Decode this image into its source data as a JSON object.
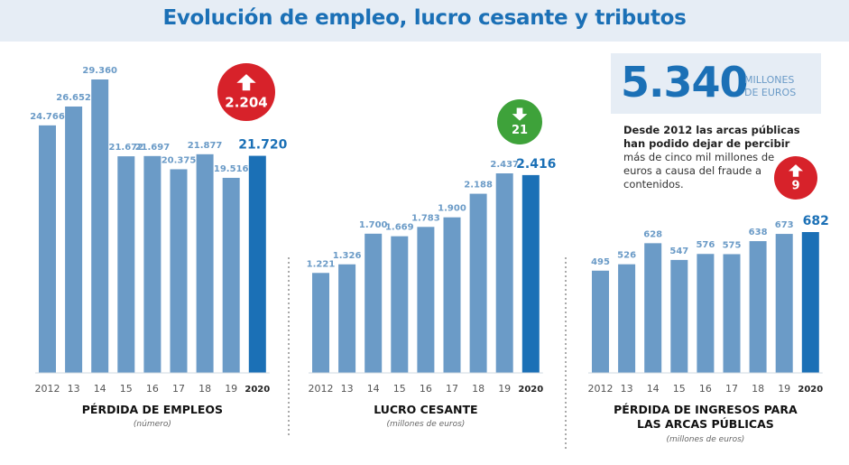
{
  "title": "Evolución de empleo, lucro cesante y tributos",
  "colors": {
    "bar": "#6b9bc7",
    "bar_last": "#1b70b6",
    "up": "#d7222a",
    "down": "#3ea23a",
    "title": "#1b70b6"
  },
  "highlight": {
    "value": "5.340",
    "unit_line1": "MILLONES",
    "unit_line2": "DE EUROS",
    "text_bold": "Desde 2012 las arcas públicas han podido dejar de percibir",
    "text_rest": "más de cinco mil millones de euros a causa del fraude a contenidos."
  },
  "chart_data": [
    {
      "type": "bar",
      "title": "PÉRDIDA DE EMPLEOS",
      "subtitle": "(número)",
      "categories": [
        "2012",
        "13",
        "14",
        "15",
        "16",
        "17",
        "18",
        "19",
        "2020"
      ],
      "values": [
        24766,
        26652,
        29360,
        21672,
        21697,
        20375,
        21877,
        19516,
        21720
      ],
      "labels": [
        "24.766",
        "26.652",
        "29.360",
        "21.672",
        "21.697",
        "20.375",
        "21.877",
        "19.516",
        "21.720"
      ],
      "badge": {
        "direction": "up",
        "value": "2.204",
        "icon": "arrow-up-icon"
      }
    },
    {
      "type": "bar",
      "title": "LUCRO CESANTE",
      "subtitle": "(millones de euros)",
      "categories": [
        "2012",
        "13",
        "14",
        "15",
        "16",
        "17",
        "18",
        "19",
        "2020"
      ],
      "values": [
        1221,
        1326,
        1700,
        1669,
        1783,
        1900,
        2188,
        2437,
        2416
      ],
      "labels": [
        "1.221",
        "1.326",
        "1.700",
        "1.669",
        "1.783",
        "1.900",
        "2.188",
        "2.437",
        "2.416"
      ],
      "badge": {
        "direction": "down",
        "value": "21",
        "icon": "arrow-down-icon"
      }
    },
    {
      "type": "bar",
      "title": "PÉRDIDA DE INGRESOS PARA LAS ARCAS PÚBLICAS",
      "title_lines": [
        "PÉRDIDA DE INGRESOS PARA",
        "LAS ARCAS PÚBLICAS"
      ],
      "subtitle": "(millones de euros)",
      "categories": [
        "2012",
        "13",
        "14",
        "15",
        "16",
        "17",
        "18",
        "19",
        "2020"
      ],
      "values": [
        495,
        526,
        628,
        547,
        576,
        575,
        638,
        673,
        682
      ],
      "labels": [
        "495",
        "526",
        "628",
        "547",
        "576",
        "575",
        "638",
        "673",
        "682"
      ],
      "badge": {
        "direction": "up",
        "value": "9",
        "icon": "arrow-up-icon"
      }
    }
  ]
}
